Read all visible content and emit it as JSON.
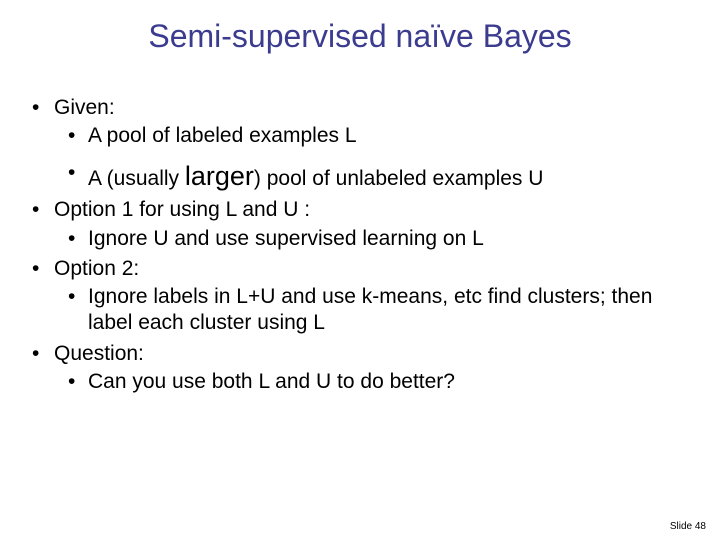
{
  "slide": {
    "title": "Semi-supervised naïve Bayes",
    "title_color": "#3b3b8f",
    "title_fontsize": 32,
    "background_color": "#ffffff",
    "body_fontsize": 21,
    "larger_fontsize": 27,
    "text_color": "#000000",
    "bullets": [
      {
        "text": "Given:",
        "sub": [
          {
            "text": "A pool of labeled examples L"
          },
          {
            "prefix": "A (usually ",
            "emph": "larger",
            "suffix": ") pool of unlabeled examples U",
            "special": true
          }
        ]
      },
      {
        "text": "Option 1 for using L and U :",
        "sub": [
          {
            "text": "Ignore U and use supervised learning on L"
          }
        ]
      },
      {
        "text": "Option 2:",
        "sub": [
          {
            "text": "Ignore labels in L+U and use k-means, etc find clusters; then label each cluster using L"
          }
        ]
      },
      {
        "text": "Question:",
        "sub": [
          {
            "text": "Can you use both L and U to do better?"
          }
        ]
      }
    ],
    "footer": "Slide 48",
    "footer_fontsize": 10
  }
}
